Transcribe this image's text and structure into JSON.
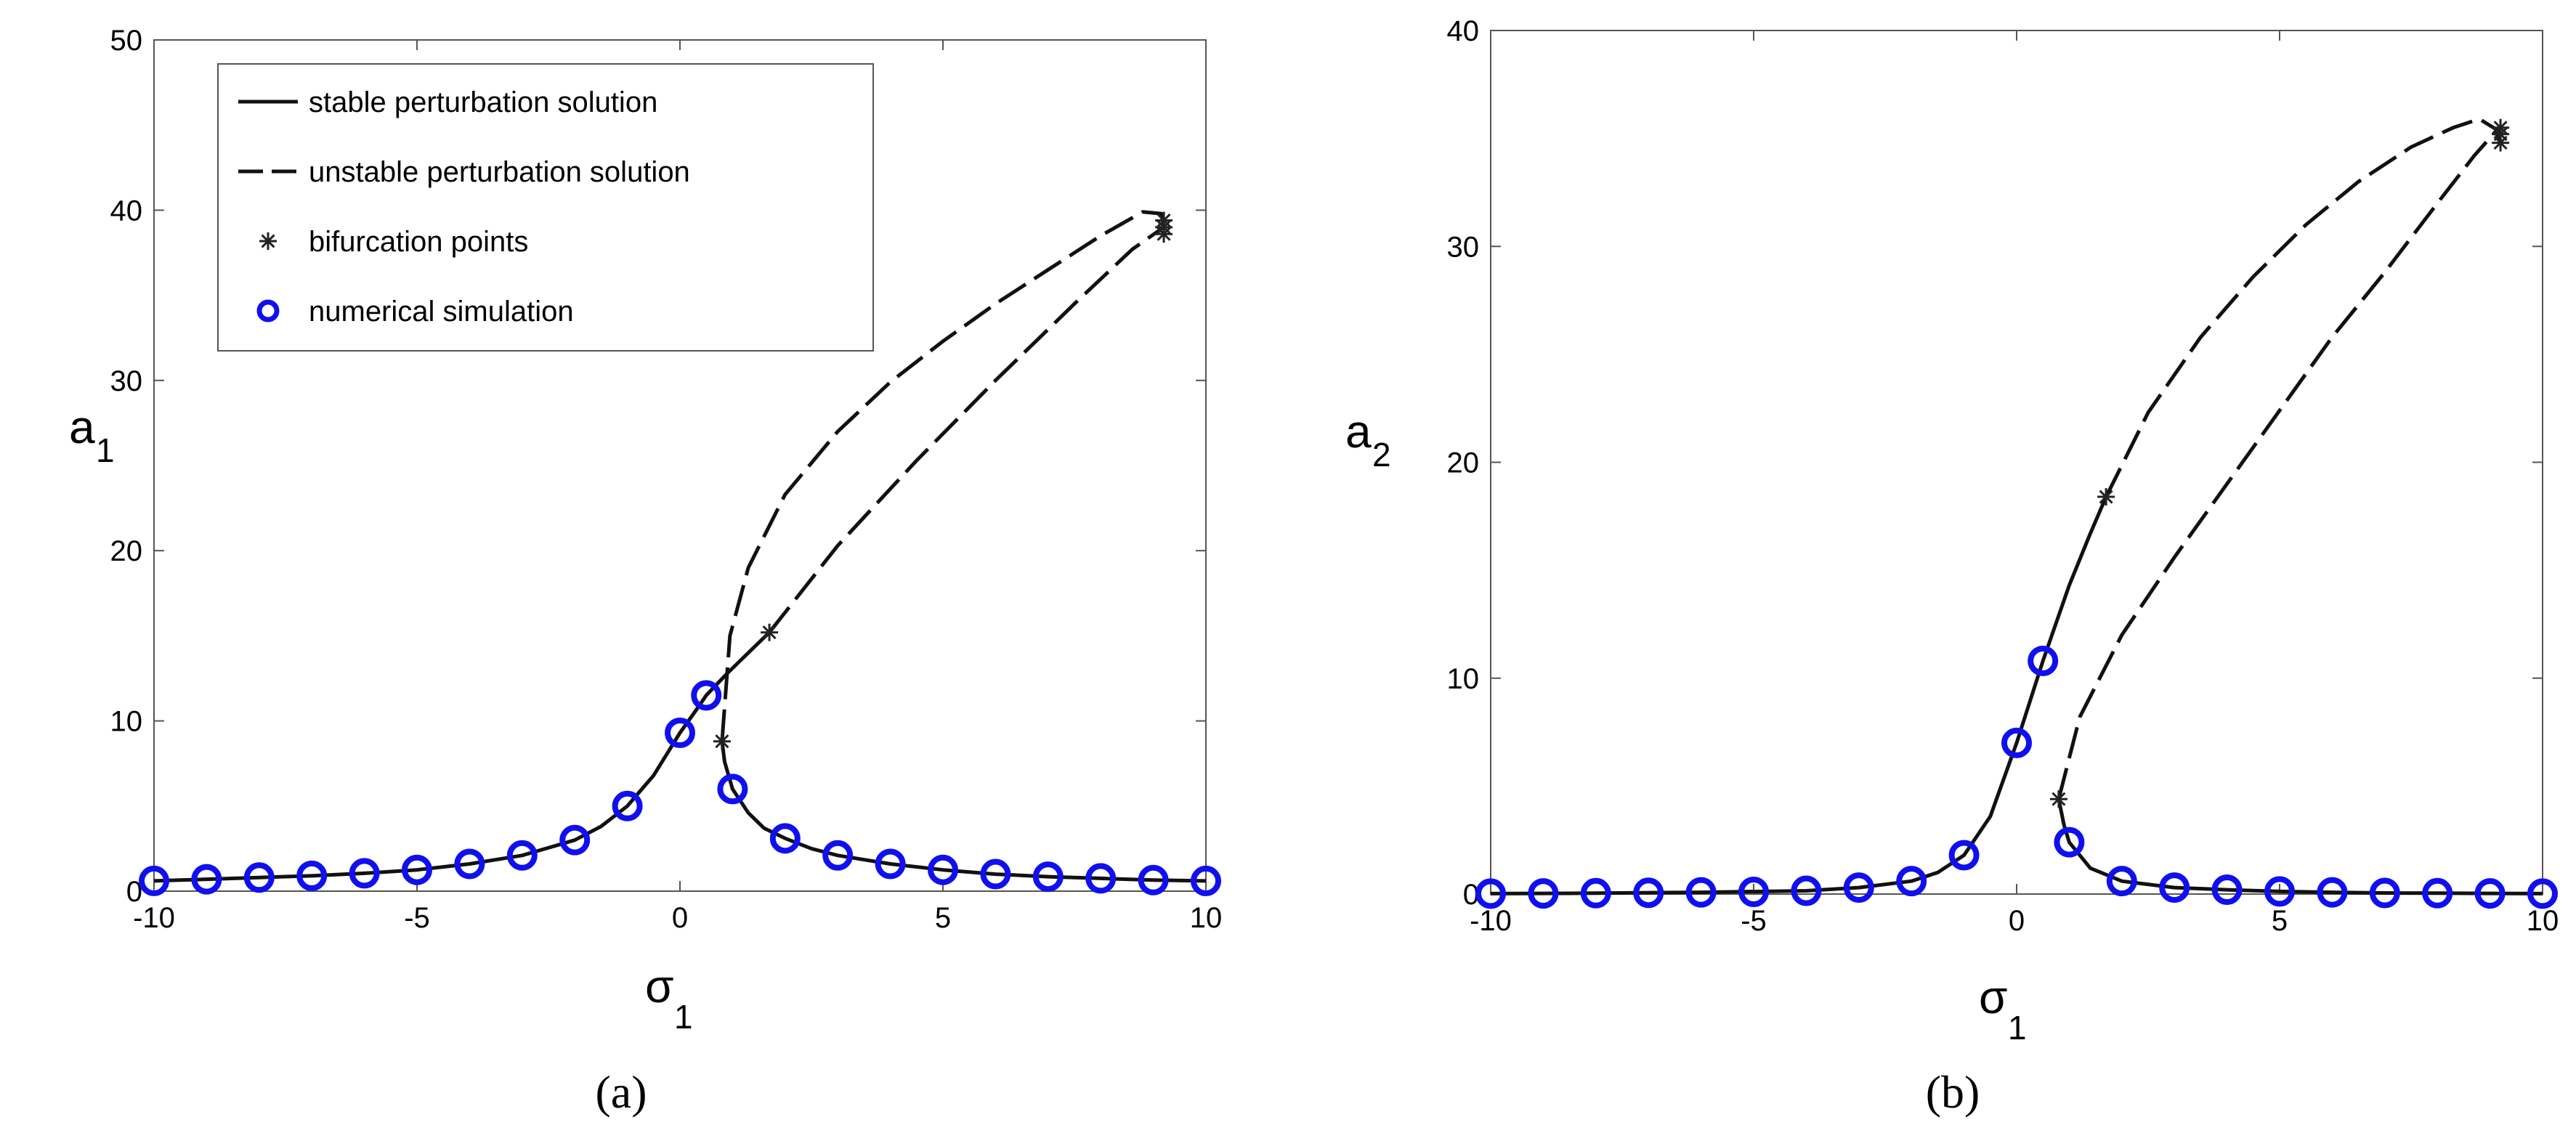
{
  "chart_data": [
    {
      "type": "line",
      "panel": "a",
      "caption": "(a)",
      "xlabel": "σ",
      "xlabel_sub": "1",
      "ylabel": "a",
      "ylabel_sub": "1",
      "xlim": [
        -10,
        10
      ],
      "ylim": [
        0,
        50
      ],
      "xticks": [
        "-10",
        "-5",
        "0",
        "5",
        "10"
      ],
      "yticks": [
        "0",
        "10",
        "20",
        "30",
        "40",
        "50"
      ],
      "grid": false,
      "legend_position": "top-left",
      "legend": [
        {
          "label": "stable perturbation solution",
          "style": "solid"
        },
        {
          "label": "unstable perturbation solution",
          "style": "dashed"
        },
        {
          "label": "bifurcation points",
          "style": "asterisk"
        },
        {
          "label": "numerical simulation",
          "style": "circle"
        }
      ],
      "series": [
        {
          "style": "solid",
          "x": [
            -10,
            -9,
            -8,
            -7,
            -6,
            -5,
            -4,
            -3,
            -2,
            -1.5,
            -1,
            -0.5,
            0,
            0.3,
            0.5,
            0.9,
            1.3,
            1.7
          ],
          "y": [
            0.6,
            0.7,
            0.8,
            0.9,
            1.05,
            1.25,
            1.6,
            2.1,
            3.0,
            3.8,
            5.0,
            6.8,
            9.3,
            10.6,
            11.5,
            12.8,
            14.0,
            15.2
          ]
        },
        {
          "style": "solid",
          "x": [
            0.8,
            0.85,
            1.0,
            1.3,
            1.6,
            2,
            2.5,
            3,
            4,
            5,
            6,
            7,
            8,
            9,
            10
          ],
          "y": [
            8.8,
            7.6,
            6.0,
            4.6,
            3.7,
            3.1,
            2.5,
            2.1,
            1.6,
            1.25,
            1.0,
            0.85,
            0.75,
            0.65,
            0.6
          ]
        },
        {
          "style": "dashed",
          "x": [
            1.7,
            3,
            4.5,
            6,
            7.5,
            8.6,
            9.2
          ],
          "y": [
            15.2,
            20.3,
            25.3,
            30.0,
            34.5,
            37.7,
            39.0
          ]
        },
        {
          "style": "dashed",
          "x": [
            0.8,
            0.95,
            1.3,
            2,
            3,
            4,
            5,
            6,
            7,
            8,
            8.8,
            9.15,
            9.2
          ],
          "y": [
            8.8,
            15.0,
            19.0,
            23.3,
            27.0,
            29.9,
            32.3,
            34.5,
            36.5,
            38.5,
            39.9,
            39.8,
            39.0
          ]
        }
      ],
      "bifurcation_points": {
        "x": [
          0.8,
          1.7,
          9.2,
          9.2,
          9.2
        ],
        "y": [
          8.8,
          15.2,
          38.6,
          39.0,
          39.4
        ]
      },
      "numerical_simulation": {
        "x": [
          -10,
          -9,
          -8,
          -7,
          -6,
          -5,
          -4,
          -3,
          -2,
          -1,
          0,
          0.5,
          1,
          2,
          3,
          4,
          5,
          6,
          7,
          8,
          9,
          10
        ],
        "y": [
          0.6,
          0.7,
          0.8,
          0.9,
          1.05,
          1.25,
          1.6,
          2.1,
          3.0,
          5.0,
          9.3,
          11.5,
          6.0,
          3.1,
          2.1,
          1.6,
          1.25,
          1.0,
          0.85,
          0.75,
          0.65,
          0.6
        ]
      }
    },
    {
      "type": "line",
      "panel": "b",
      "caption": "(b)",
      "xlabel": "σ",
      "xlabel_sub": "1",
      "ylabel": "a",
      "ylabel_sub": "2",
      "xlim": [
        -10,
        10
      ],
      "ylim": [
        0,
        40
      ],
      "xticks": [
        "-10",
        "-5",
        "0",
        "5",
        "10"
      ],
      "yticks": [
        "0",
        "10",
        "20",
        "30",
        "40"
      ],
      "grid": false,
      "series": [
        {
          "style": "solid",
          "x": [
            -10,
            -8,
            -6,
            -4,
            -3,
            -2,
            -1.5,
            -1,
            -0.5,
            0,
            0.25,
            0.5,
            1.0,
            1.4,
            1.7
          ],
          "y": [
            0.02,
            0.04,
            0.08,
            0.15,
            0.3,
            0.6,
            1.0,
            1.8,
            3.6,
            7.0,
            8.9,
            10.8,
            14.3,
            16.7,
            18.4
          ]
        },
        {
          "style": "solid",
          "x": [
            0.8,
            0.9,
            1.0,
            1.4,
            2,
            3,
            4,
            5,
            6,
            7,
            8,
            9,
            10
          ],
          "y": [
            4.4,
            3.2,
            2.4,
            1.2,
            0.6,
            0.3,
            0.2,
            0.12,
            0.08,
            0.05,
            0.04,
            0.03,
            0.02
          ]
        },
        {
          "style": "dashed",
          "x": [
            1.7,
            2.5,
            3.5,
            4.5,
            5.5,
            6.5,
            7.5,
            8.3,
            8.8,
            9.2
          ],
          "y": [
            18.4,
            22.3,
            25.8,
            28.6,
            31.0,
            33.0,
            34.6,
            35.5,
            35.9,
            35.3
          ]
        },
        {
          "style": "dashed",
          "x": [
            0.8,
            1.2,
            2,
            3,
            4,
            5,
            6,
            7,
            8,
            8.7,
            9.1,
            9.2
          ],
          "y": [
            4.4,
            8.2,
            12.0,
            15.6,
            19.0,
            22.4,
            25.8,
            28.8,
            32.0,
            34.2,
            35.3,
            34.9
          ]
        }
      ],
      "bifurcation_points": {
        "x": [
          0.8,
          1.7,
          9.2,
          9.2,
          9.2
        ],
        "y": [
          4.4,
          18.4,
          34.8,
          35.2,
          35.5
        ]
      },
      "numerical_simulation": {
        "x": [
          -10,
          -9,
          -8,
          -7,
          -6,
          -5,
          -4,
          -3,
          -2,
          -1,
          0,
          0.5,
          1,
          2,
          3,
          4,
          5,
          6,
          7,
          8,
          9,
          10
        ],
        "y": [
          0.02,
          0.03,
          0.04,
          0.06,
          0.08,
          0.1,
          0.15,
          0.3,
          0.6,
          1.8,
          7.0,
          10.8,
          2.4,
          0.6,
          0.3,
          0.2,
          0.12,
          0.08,
          0.05,
          0.04,
          0.03,
          0.02
        ]
      }
    }
  ]
}
